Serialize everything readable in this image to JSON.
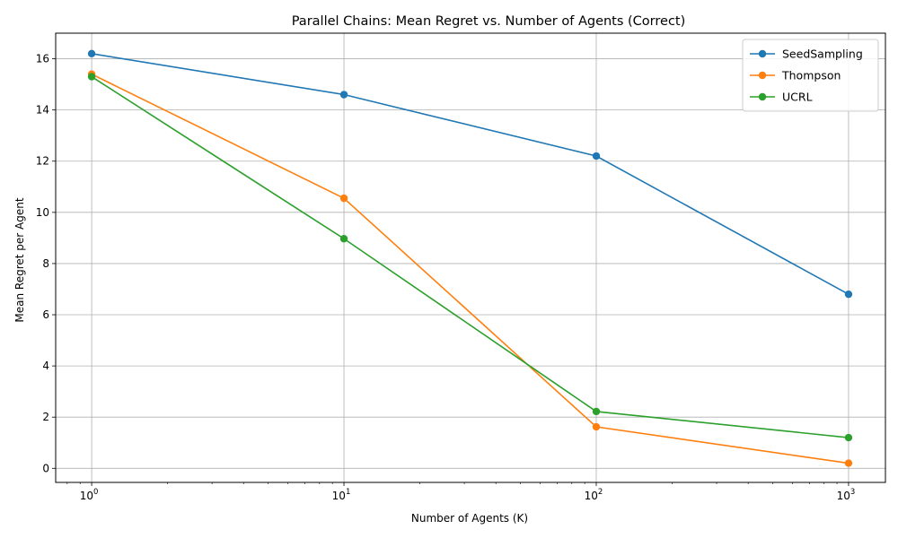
{
  "chart_data": {
    "type": "line",
    "title": "Parallel Chains: Mean Regret vs. Number of Agents (Correct)",
    "xlabel": "Number of Agents (K)",
    "ylabel": "Mean Regret per Agent",
    "x_scale": "log",
    "x": [
      1,
      10,
      100,
      1000
    ],
    "xlim": [
      0.72,
      1400
    ],
    "ylim": [
      -0.55,
      17.0
    ],
    "x_ticks": [
      {
        "value": 1,
        "base": "10",
        "exp": "0"
      },
      {
        "value": 10,
        "base": "10",
        "exp": "1"
      },
      {
        "value": 100,
        "base": "10",
        "exp": "2"
      },
      {
        "value": 1000,
        "base": "10",
        "exp": "3"
      }
    ],
    "y_ticks": [
      0,
      2,
      4,
      6,
      8,
      10,
      12,
      14,
      16
    ],
    "grid": true,
    "legend_position": "top-right",
    "series": [
      {
        "name": "SeedSampling",
        "color": "#1f77b4",
        "values": [
          16.2,
          14.6,
          12.2,
          6.8
        ]
      },
      {
        "name": "Thompson",
        "color": "#ff7f0e",
        "values": [
          15.4,
          10.55,
          1.62,
          0.2
        ]
      },
      {
        "name": "UCRL",
        "color": "#2ca02c",
        "values": [
          15.3,
          8.97,
          2.22,
          1.2
        ]
      }
    ]
  }
}
